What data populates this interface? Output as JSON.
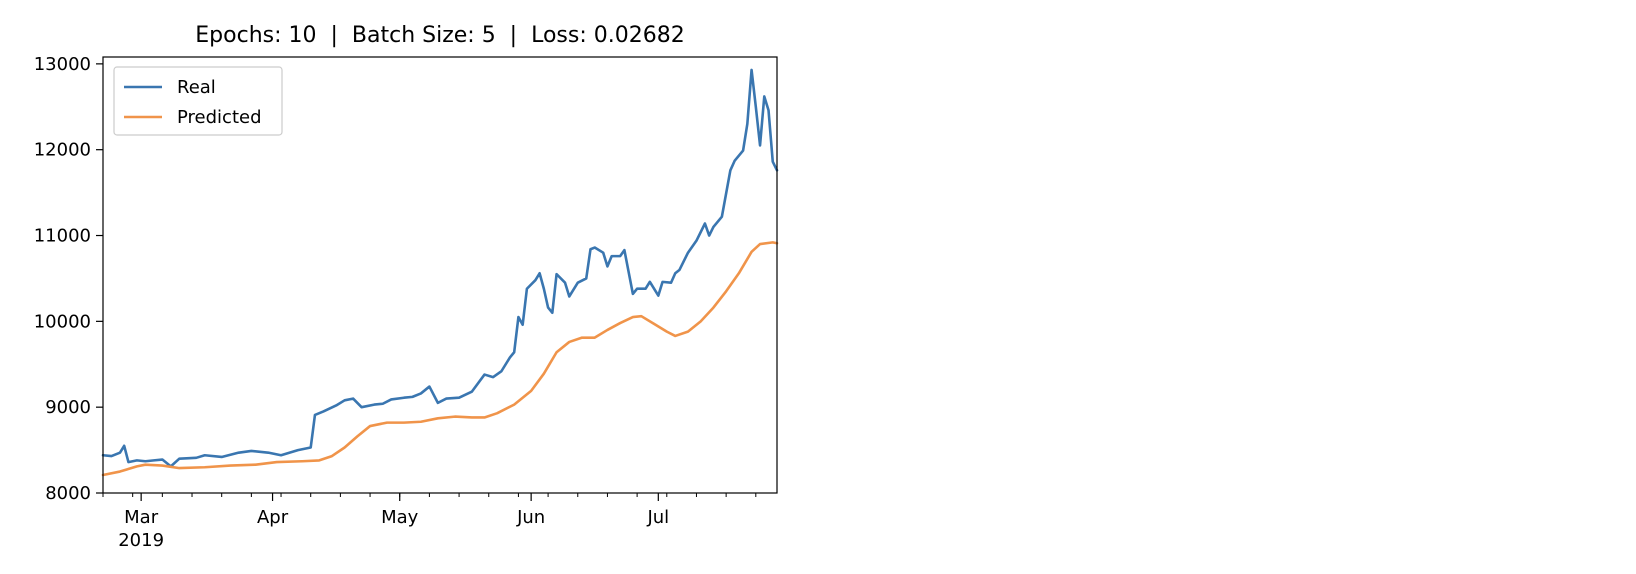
{
  "chart_data": {
    "type": "line",
    "title": "Epochs: 10  |  Batch Size: 5  |  Loss: 0.02682",
    "xlabel": "",
    "ylabel": "",
    "x_start": "2019-02-20",
    "x_end": "2019-07-29",
    "xlim": [
      "2019-02-20",
      "2019-07-29"
    ],
    "ylim": [
      8000,
      13080
    ],
    "y_ticks": [
      8000,
      9000,
      10000,
      11000,
      12000,
      13000
    ],
    "x_ticks": [
      {
        "date": "2019-03-01",
        "label": "Mar",
        "sublabel": "2019"
      },
      {
        "date": "2019-04-01",
        "label": "Apr",
        "sublabel": ""
      },
      {
        "date": "2019-05-01",
        "label": "May",
        "sublabel": ""
      },
      {
        "date": "2019-06-01",
        "label": "Jun",
        "sublabel": ""
      },
      {
        "date": "2019-07-01",
        "label": "Jul",
        "sublabel": ""
      }
    ],
    "legend_position": "top-left",
    "grid": false,
    "series": [
      {
        "name": "Real",
        "color": "#3a76b0",
        "points": [
          [
            "2019-02-20",
            8440
          ],
          [
            "2019-02-22",
            8430
          ],
          [
            "2019-02-24",
            8470
          ],
          [
            "2019-02-25",
            8550
          ],
          [
            "2019-02-26",
            8360
          ],
          [
            "2019-02-28",
            8380
          ],
          [
            "2019-03-02",
            8370
          ],
          [
            "2019-03-04",
            8380
          ],
          [
            "2019-03-06",
            8390
          ],
          [
            "2019-03-08",
            8310
          ],
          [
            "2019-03-10",
            8400
          ],
          [
            "2019-03-14",
            8410
          ],
          [
            "2019-03-16",
            8440
          ],
          [
            "2019-03-20",
            8420
          ],
          [
            "2019-03-24",
            8470
          ],
          [
            "2019-03-27",
            8490
          ],
          [
            "2019-03-31",
            8470
          ],
          [
            "2019-04-03",
            8440
          ],
          [
            "2019-04-07",
            8500
          ],
          [
            "2019-04-10",
            8530
          ],
          [
            "2019-04-11",
            8910
          ],
          [
            "2019-04-13",
            8950
          ],
          [
            "2019-04-16",
            9020
          ],
          [
            "2019-04-18",
            9080
          ],
          [
            "2019-04-20",
            9100
          ],
          [
            "2019-04-22",
            9000
          ],
          [
            "2019-04-25",
            9030
          ],
          [
            "2019-04-27",
            9040
          ],
          [
            "2019-04-29",
            9090
          ],
          [
            "2019-05-02",
            9110
          ],
          [
            "2019-05-04",
            9120
          ],
          [
            "2019-05-06",
            9160
          ],
          [
            "2019-05-08",
            9240
          ],
          [
            "2019-05-10",
            9050
          ],
          [
            "2019-05-12",
            9100
          ],
          [
            "2019-05-15",
            9110
          ],
          [
            "2019-05-18",
            9180
          ],
          [
            "2019-05-21",
            9380
          ],
          [
            "2019-05-23",
            9350
          ],
          [
            "2019-05-25",
            9420
          ],
          [
            "2019-05-27",
            9580
          ],
          [
            "2019-05-28",
            9640
          ],
          [
            "2019-05-29",
            10050
          ],
          [
            "2019-05-30",
            9960
          ],
          [
            "2019-05-31",
            10380
          ],
          [
            "2019-06-02",
            10480
          ],
          [
            "2019-06-03",
            10560
          ],
          [
            "2019-06-04",
            10380
          ],
          [
            "2019-06-05",
            10160
          ],
          [
            "2019-06-06",
            10100
          ],
          [
            "2019-06-07",
            10550
          ],
          [
            "2019-06-09",
            10450
          ],
          [
            "2019-06-10",
            10290
          ],
          [
            "2019-06-12",
            10450
          ],
          [
            "2019-06-14",
            10500
          ],
          [
            "2019-06-15",
            10840
          ],
          [
            "2019-06-16",
            10860
          ],
          [
            "2019-06-18",
            10800
          ],
          [
            "2019-06-19",
            10640
          ],
          [
            "2019-06-20",
            10760
          ],
          [
            "2019-06-22",
            10760
          ],
          [
            "2019-06-23",
            10830
          ],
          [
            "2019-06-25",
            10320
          ],
          [
            "2019-06-26",
            10380
          ],
          [
            "2019-06-28",
            10380
          ],
          [
            "2019-06-29",
            10460
          ],
          [
            "2019-07-01",
            10300
          ],
          [
            "2019-07-02",
            10460
          ],
          [
            "2019-07-04",
            10450
          ],
          [
            "2019-07-05",
            10560
          ],
          [
            "2019-07-06",
            10600
          ],
          [
            "2019-07-08",
            10800
          ],
          [
            "2019-07-10",
            10940
          ],
          [
            "2019-07-12",
            11140
          ],
          [
            "2019-07-13",
            11000
          ],
          [
            "2019-07-14",
            11100
          ],
          [
            "2019-07-16",
            11220
          ],
          [
            "2019-07-18",
            11760
          ],
          [
            "2019-07-19",
            11870
          ],
          [
            "2019-07-21",
            11990
          ],
          [
            "2019-07-22",
            12300
          ],
          [
            "2019-07-23",
            12930
          ],
          [
            "2019-07-24",
            12500
          ],
          [
            "2019-07-25",
            12050
          ],
          [
            "2019-07-26",
            12620
          ],
          [
            "2019-07-27",
            12460
          ],
          [
            "2019-07-28",
            11860
          ],
          [
            "2019-07-29",
            11760
          ]
        ]
      },
      {
        "name": "Predicted",
        "color": "#f0944a",
        "points": [
          [
            "2019-02-20",
            8210
          ],
          [
            "2019-02-24",
            8250
          ],
          [
            "2019-02-28",
            8310
          ],
          [
            "2019-03-02",
            8330
          ],
          [
            "2019-03-06",
            8320
          ],
          [
            "2019-03-10",
            8290
          ],
          [
            "2019-03-16",
            8300
          ],
          [
            "2019-03-22",
            8320
          ],
          [
            "2019-03-28",
            8330
          ],
          [
            "2019-04-02",
            8360
          ],
          [
            "2019-04-08",
            8370
          ],
          [
            "2019-04-12",
            8380
          ],
          [
            "2019-04-15",
            8430
          ],
          [
            "2019-04-18",
            8530
          ],
          [
            "2019-04-21",
            8660
          ],
          [
            "2019-04-24",
            8780
          ],
          [
            "2019-04-28",
            8820
          ],
          [
            "2019-05-02",
            8820
          ],
          [
            "2019-05-06",
            8830
          ],
          [
            "2019-05-10",
            8870
          ],
          [
            "2019-05-14",
            8890
          ],
          [
            "2019-05-18",
            8880
          ],
          [
            "2019-05-21",
            8880
          ],
          [
            "2019-05-24",
            8930
          ],
          [
            "2019-05-28",
            9030
          ],
          [
            "2019-06-01",
            9190
          ],
          [
            "2019-06-04",
            9390
          ],
          [
            "2019-06-07",
            9640
          ],
          [
            "2019-06-10",
            9760
          ],
          [
            "2019-06-13",
            9810
          ],
          [
            "2019-06-16",
            9810
          ],
          [
            "2019-06-19",
            9900
          ],
          [
            "2019-06-22",
            9980
          ],
          [
            "2019-06-25",
            10050
          ],
          [
            "2019-06-27",
            10060
          ],
          [
            "2019-06-30",
            9970
          ],
          [
            "2019-07-03",
            9880
          ],
          [
            "2019-07-05",
            9830
          ],
          [
            "2019-07-08",
            9880
          ],
          [
            "2019-07-11",
            10000
          ],
          [
            "2019-07-14",
            10160
          ],
          [
            "2019-07-17",
            10350
          ],
          [
            "2019-07-20",
            10560
          ],
          [
            "2019-07-23",
            10810
          ],
          [
            "2019-07-25",
            10900
          ],
          [
            "2019-07-28",
            10920
          ],
          [
            "2019-07-29",
            10910
          ]
        ]
      }
    ]
  }
}
